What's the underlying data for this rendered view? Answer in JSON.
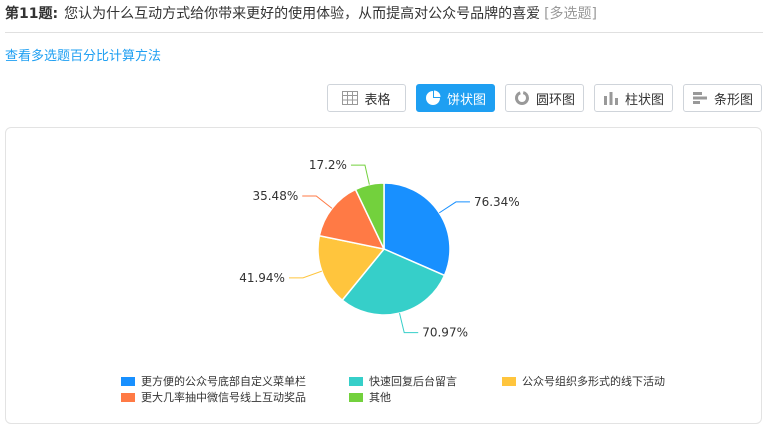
{
  "question": {
    "number": "第11题:",
    "text": "您认为什么互动方式给你带来更好的使用体验，从而提高对公众号品牌的喜爱",
    "type": "[多选题]"
  },
  "calc_link": "查看多选题百分比计算方法",
  "tabs": [
    {
      "label": "表格",
      "icon": "table-icon",
      "active": false
    },
    {
      "label": "饼状图",
      "icon": "pie-chart-icon",
      "active": true
    },
    {
      "label": "圆环图",
      "icon": "donut-chart-icon",
      "active": false
    },
    {
      "label": "柱状图",
      "icon": "bar-chart-icon",
      "active": false
    },
    {
      "label": "条形图",
      "icon": "horizontal-bar-chart-icon",
      "active": false
    }
  ],
  "colors": {
    "accent": "#1e9ff2",
    "series": [
      "#1890ff",
      "#36cfc9",
      "#ffc53d",
      "#ff7a45",
      "#73d13d"
    ]
  },
  "chart_data": {
    "type": "pie",
    "categories": [
      "更方便的公众号底部自定义菜单栏",
      "快速回复后台留言",
      "公众号组织多形式的线下活动",
      "更大几率抽中微信号线上互动奖品",
      "其他"
    ],
    "values": [
      76.34,
      70.97,
      41.94,
      35.48,
      17.2
    ],
    "labels": [
      "76.34%",
      "70.97%",
      "41.94%",
      "35.48%",
      "17.2%"
    ],
    "legend_position": "bottom"
  }
}
